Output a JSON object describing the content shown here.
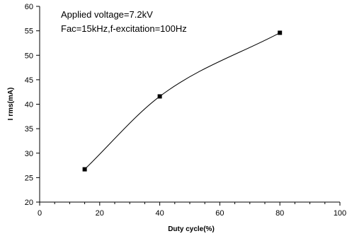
{
  "chart_data": {
    "type": "line",
    "xlabel": "Duty cycle(%)",
    "ylabel": "I rms(mA)",
    "xlim": [
      0,
      100
    ],
    "ylim": [
      20,
      60
    ],
    "x_ticks": [
      "0",
      "20",
      "40",
      "60",
      "80",
      "100"
    ],
    "y_ticks": [
      "20",
      "25",
      "30",
      "35",
      "40",
      "45",
      "50",
      "55",
      "60"
    ],
    "annotations": [
      "Applied voltage=7.2kV",
      "Fac=15kHz,f-excitation=100Hz"
    ],
    "series": [
      {
        "x": [
          15,
          40,
          80
        ],
        "y": [
          26.7,
          41.6,
          54.6
        ],
        "marker": "square",
        "color": "#000000"
      }
    ],
    "grid": false,
    "legend": "none"
  }
}
